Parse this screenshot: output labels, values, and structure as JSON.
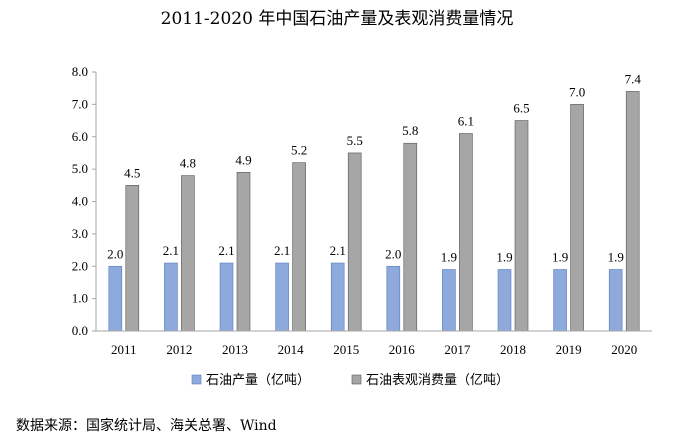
{
  "chart_data": {
    "type": "bar",
    "title": "2011-2020 年中国石油产量及表观消费量情况",
    "categories": [
      "2011",
      "2012",
      "2013",
      "2014",
      "2015",
      "2016",
      "2017",
      "2018",
      "2019",
      "2020"
    ],
    "series": [
      {
        "name": "石油产量（亿吨）",
        "color": "#8EA9DB",
        "values": [
          2.0,
          2.1,
          2.1,
          2.1,
          2.1,
          2.0,
          1.9,
          1.9,
          1.9,
          1.9
        ],
        "labels": [
          "2.0",
          "2.1",
          "2.1",
          "2.1",
          "2.1",
          "2.0",
          "1.9",
          "1.9",
          "1.9",
          "1.9"
        ]
      },
      {
        "name": "石油表观消费量（亿吨）",
        "color": "#A6A6A6",
        "values": [
          4.5,
          4.8,
          4.9,
          5.2,
          5.5,
          5.8,
          6.1,
          6.5,
          7.0,
          7.4
        ],
        "labels": [
          "4.5",
          "4.8",
          "4.9",
          "5.2",
          "5.5",
          "5.8",
          "6.1",
          "6.5",
          "7.0",
          "7.4"
        ]
      }
    ],
    "ylim": [
      0,
      8
    ],
    "yticks": [
      "0.0",
      "1.0",
      "2.0",
      "3.0",
      "4.0",
      "5.0",
      "6.0",
      "7.0",
      "8.0"
    ],
    "xlabel": "",
    "ylabel": "",
    "grid": false,
    "legend": "bottom-center"
  },
  "source": "数据来源：国家统计局、海关总署、Wind"
}
